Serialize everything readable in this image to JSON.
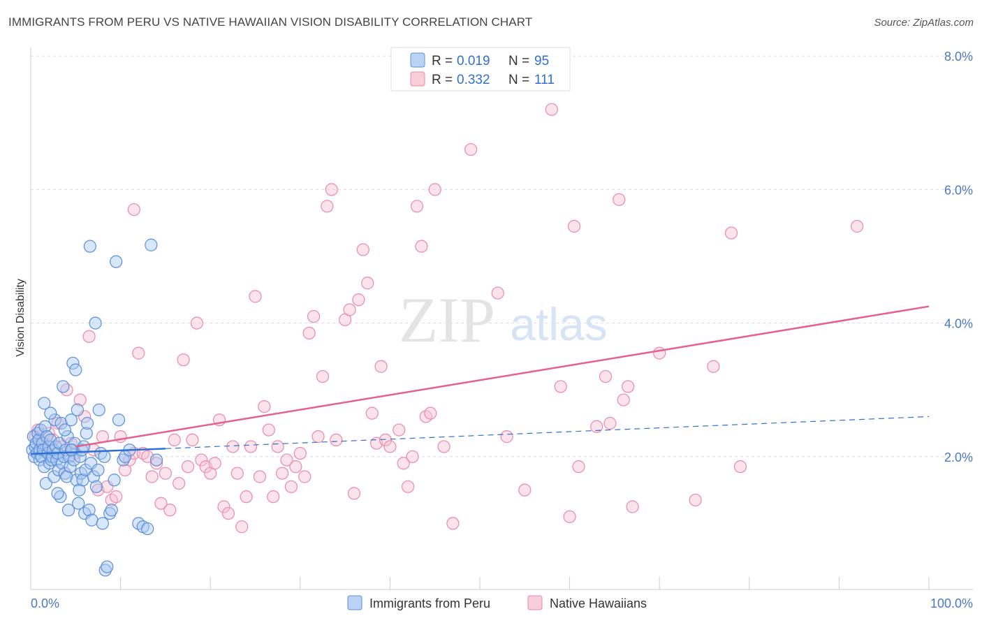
{
  "header": {
    "title": "IMMIGRANTS FROM PERU VS NATIVE HAWAIIAN VISION DISABILITY CORRELATION CHART",
    "source": "Source: ZipAtlas.com"
  },
  "watermark": {
    "zip": "ZIP",
    "atlas": "atlas"
  },
  "colors": {
    "peru_fill": "#a9c8f2",
    "peru_stroke": "#5b8ed9",
    "peru_line": "#2e6fd4",
    "hawaii_fill": "#f7c2d2",
    "hawaii_stroke": "#e98aa8",
    "hawaii_line": "#e4608d",
    "grid": "#dddddd",
    "tick_text": "#4a79c4"
  },
  "legend": {
    "rows": [
      {
        "r_label": "R =",
        "r_value": "0.019",
        "n_label": "N =",
        "n_value": "95"
      },
      {
        "r_label": "R =",
        "r_value": "0.332",
        "n_label": "N =",
        "n_value": "111"
      }
    ]
  },
  "bottom_legend": [
    "Immigrants from Peru",
    "Native Hawaiians"
  ],
  "chart_data": {
    "type": "scatter",
    "title": "IMMIGRANTS FROM PERU VS NATIVE HAWAIIAN VISION DISABILITY CORRELATION CHART",
    "xlabel": "",
    "ylabel": "Vision Disability",
    "xlim": [
      0,
      100
    ],
    "ylim": [
      0,
      8.0
    ],
    "x_ticks_labels": [
      "0.0%",
      "100.0%"
    ],
    "y_ticks": [
      2.0,
      4.0,
      6.0,
      8.0
    ],
    "y_ticks_labels": [
      "2.0%",
      "4.0%",
      "6.0%",
      "8.0%"
    ],
    "grid": true,
    "legend_position": "top-center",
    "series": [
      {
        "name": "Immigrants from Peru",
        "R": 0.019,
        "N": 95,
        "trend": {
          "x": [
            0,
            15
          ],
          "y": [
            2.04,
            2.12
          ]
        },
        "trend_extended": {
          "x": [
            15,
            100
          ],
          "y": [
            2.12,
            2.6
          ]
        },
        "points": [
          [
            0.2,
            2.1
          ],
          [
            0.3,
            2.3
          ],
          [
            0.4,
            2.0
          ],
          [
            0.5,
            2.15
          ],
          [
            0.6,
            2.2
          ],
          [
            0.7,
            2.05
          ],
          [
            0.8,
            2.35
          ],
          [
            0.9,
            2.25
          ],
          [
            1.0,
            2.1
          ],
          [
            1.0,
            1.95
          ],
          [
            1.1,
            2.4
          ],
          [
            1.2,
            2.0
          ],
          [
            1.3,
            2.2
          ],
          [
            1.4,
            2.1
          ],
          [
            1.5,
            1.85
          ],
          [
            1.5,
            2.8
          ],
          [
            1.6,
            2.45
          ],
          [
            1.7,
            1.6
          ],
          [
            1.8,
            2.3
          ],
          [
            1.9,
            2.05
          ],
          [
            2.0,
            2.15
          ],
          [
            2.1,
            1.9
          ],
          [
            2.2,
            2.25
          ],
          [
            2.3,
            1.95
          ],
          [
            2.4,
            2.0
          ],
          [
            2.5,
            2.1
          ],
          [
            2.6,
            1.7
          ],
          [
            2.7,
            2.55
          ],
          [
            2.8,
            2.15
          ],
          [
            2.9,
            1.95
          ],
          [
            3.0,
            2.05
          ],
          [
            3.1,
            1.8
          ],
          [
            3.2,
            2.2
          ],
          [
            3.3,
            1.4
          ],
          [
            3.4,
            2.5
          ],
          [
            3.5,
            1.9
          ],
          [
            3.6,
            3.05
          ],
          [
            3.7,
            2.0
          ],
          [
            3.8,
            1.75
          ],
          [
            3.9,
            2.1
          ],
          [
            4.0,
            1.7
          ],
          [
            4.1,
            2.3
          ],
          [
            4.2,
            1.2
          ],
          [
            4.3,
            2.0
          ],
          [
            4.4,
            1.85
          ],
          [
            4.5,
            2.55
          ],
          [
            4.6,
            2.1
          ],
          [
            4.7,
            3.4
          ],
          [
            4.8,
            1.95
          ],
          [
            4.9,
            2.2
          ],
          [
            5.0,
            3.3
          ],
          [
            5.1,
            1.65
          ],
          [
            5.2,
            2.7
          ],
          [
            5.3,
            1.3
          ],
          [
            5.4,
            1.5
          ],
          [
            5.5,
            2.0
          ],
          [
            5.6,
            1.75
          ],
          [
            5.7,
            2.1
          ],
          [
            5.8,
            1.65
          ],
          [
            5.9,
            2.15
          ],
          [
            6.0,
            1.15
          ],
          [
            6.1,
            1.8
          ],
          [
            6.2,
            2.35
          ],
          [
            6.3,
            2.5
          ],
          [
            6.5,
            1.2
          ],
          [
            6.7,
            1.9
          ],
          [
            6.8,
            1.05
          ],
          [
            7.0,
            1.7
          ],
          [
            7.2,
            4.0
          ],
          [
            7.3,
            1.55
          ],
          [
            7.5,
            1.8
          ],
          [
            7.6,
            2.7
          ],
          [
            7.8,
            2.05
          ],
          [
            8.0,
            1.0
          ],
          [
            8.2,
            2.0
          ],
          [
            8.3,
            0.3
          ],
          [
            8.5,
            0.35
          ],
          [
            8.8,
            1.15
          ],
          [
            9.0,
            1.2
          ],
          [
            9.3,
            1.65
          ],
          [
            9.5,
            4.92
          ],
          [
            9.8,
            2.55
          ],
          [
            10.3,
            1.95
          ],
          [
            10.5,
            2.0
          ],
          [
            11.0,
            2.1
          ],
          [
            12.0,
            1.0
          ],
          [
            12.5,
            0.95
          ],
          [
            13.0,
            0.92
          ],
          [
            14.0,
            1.95
          ],
          [
            6.6,
            5.15
          ],
          [
            13.4,
            5.17
          ],
          [
            3.0,
            1.45
          ],
          [
            2.2,
            2.65
          ],
          [
            4.5,
            2.1
          ],
          [
            3.8,
            2.4
          ]
        ]
      },
      {
        "name": "Native Hawaiians",
        "R": 0.332,
        "N": 111,
        "trend": {
          "x": [
            5,
            100
          ],
          "y": [
            2.15,
            4.25
          ]
        },
        "points": [
          [
            0.5,
            2.3
          ],
          [
            0.8,
            2.4
          ],
          [
            1.2,
            2.2
          ],
          [
            1.5,
            2.1
          ],
          [
            2.0,
            2.35
          ],
          [
            2.5,
            2.25
          ],
          [
            3.0,
            2.5
          ],
          [
            3.5,
            2.15
          ],
          [
            4.0,
            3.0
          ],
          [
            4.5,
            2.2
          ],
          [
            5.0,
            2.05
          ],
          [
            5.5,
            2.85
          ],
          [
            6.0,
            2.6
          ],
          [
            6.5,
            3.8
          ],
          [
            7.0,
            2.1
          ],
          [
            7.5,
            1.5
          ],
          [
            8.0,
            2.3
          ],
          [
            8.5,
            1.55
          ],
          [
            9.0,
            1.35
          ],
          [
            9.5,
            1.4
          ],
          [
            10.0,
            2.3
          ],
          [
            10.5,
            1.8
          ],
          [
            11.0,
            1.95
          ],
          [
            11.5,
            2.05
          ],
          [
            11.5,
            5.7
          ],
          [
            12.0,
            3.55
          ],
          [
            12.5,
            2.05
          ],
          [
            13.0,
            2.0
          ],
          [
            13.5,
            1.7
          ],
          [
            14.0,
            1.9
          ],
          [
            14.5,
            1.3
          ],
          [
            15.0,
            1.75
          ],
          [
            15.5,
            1.2
          ],
          [
            16.0,
            2.25
          ],
          [
            16.5,
            1.6
          ],
          [
            17.0,
            3.45
          ],
          [
            17.5,
            1.85
          ],
          [
            18.0,
            2.25
          ],
          [
            18.5,
            4.0
          ],
          [
            19.0,
            1.95
          ],
          [
            19.5,
            1.85
          ],
          [
            20.0,
            1.75
          ],
          [
            20.5,
            1.9
          ],
          [
            21.0,
            2.55
          ],
          [
            21.5,
            1.25
          ],
          [
            22.0,
            1.15
          ],
          [
            22.5,
            2.15
          ],
          [
            23.0,
            1.75
          ],
          [
            23.5,
            0.95
          ],
          [
            24.0,
            1.4
          ],
          [
            24.5,
            2.15
          ],
          [
            25.0,
            4.4
          ],
          [
            25.5,
            1.7
          ],
          [
            26.0,
            2.75
          ],
          [
            26.5,
            2.4
          ],
          [
            27.0,
            1.4
          ],
          [
            27.5,
            2.15
          ],
          [
            28.0,
            1.75
          ],
          [
            28.5,
            1.95
          ],
          [
            29.0,
            1.55
          ],
          [
            29.5,
            1.85
          ],
          [
            30.0,
            2.05
          ],
          [
            30.5,
            1.7
          ],
          [
            31.0,
            3.85
          ],
          [
            31.5,
            4.1
          ],
          [
            32.0,
            2.3
          ],
          [
            32.5,
            3.2
          ],
          [
            33.0,
            5.75
          ],
          [
            33.5,
            6.0
          ],
          [
            34.0,
            2.25
          ],
          [
            35.0,
            4.05
          ],
          [
            35.5,
            4.2
          ],
          [
            36.0,
            1.45
          ],
          [
            36.5,
            4.35
          ],
          [
            37.0,
            5.1
          ],
          [
            37.5,
            4.6
          ],
          [
            38.0,
            2.65
          ],
          [
            38.5,
            2.2
          ],
          [
            39.0,
            3.35
          ],
          [
            39.5,
            2.25
          ],
          [
            40.0,
            2.15
          ],
          [
            41.0,
            2.4
          ],
          [
            41.5,
            1.9
          ],
          [
            42.0,
            1.55
          ],
          [
            42.5,
            2.0
          ],
          [
            43.0,
            5.75
          ],
          [
            43.5,
            5.15
          ],
          [
            44.0,
            2.6
          ],
          [
            44.5,
            2.65
          ],
          [
            45.0,
            6.0
          ],
          [
            46.0,
            2.15
          ],
          [
            47.0,
            1.0
          ],
          [
            49.0,
            6.6
          ],
          [
            52.0,
            4.45
          ],
          [
            53.0,
            2.3
          ],
          [
            55.0,
            1.5
          ],
          [
            58.0,
            7.2
          ],
          [
            59.0,
            3.05
          ],
          [
            60.0,
            1.1
          ],
          [
            60.5,
            5.45
          ],
          [
            61.0,
            1.85
          ],
          [
            63.0,
            2.45
          ],
          [
            64.0,
            3.2
          ],
          [
            64.5,
            2.5
          ],
          [
            65.5,
            5.85
          ],
          [
            66.0,
            2.85
          ],
          [
            66.5,
            3.05
          ],
          [
            67.0,
            1.25
          ],
          [
            70.0,
            3.55
          ],
          [
            74.0,
            1.35
          ],
          [
            76.0,
            3.35
          ],
          [
            78.0,
            5.35
          ],
          [
            79.0,
            1.85
          ],
          [
            92.0,
            5.45
          ]
        ]
      }
    ]
  }
}
